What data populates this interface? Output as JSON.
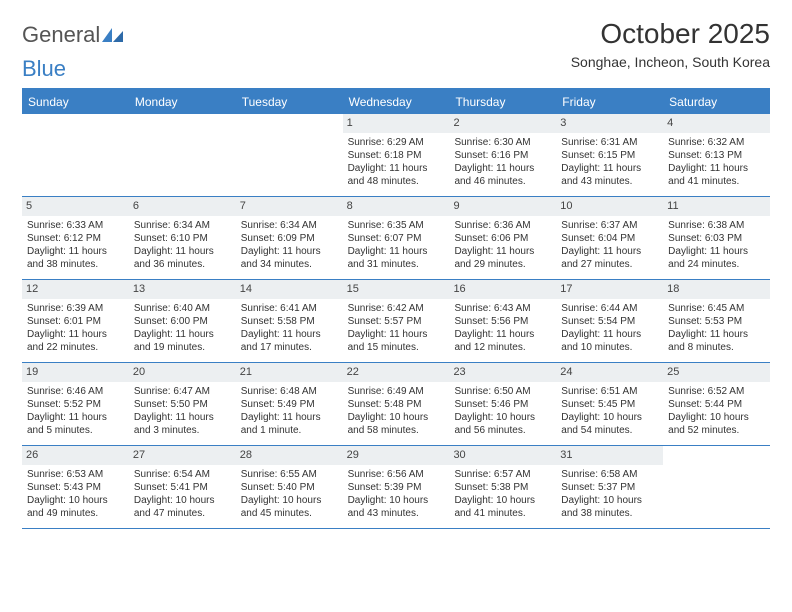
{
  "logo": {
    "general": "General",
    "blue": "Blue"
  },
  "header": {
    "title": "October 2025",
    "location": "Songhae, Incheon, South Korea"
  },
  "colors": {
    "primary": "#3a7fc4",
    "daynum_bg": "#eceff1",
    "text": "#333333",
    "logo_gray": "#555555",
    "white": "#ffffff"
  },
  "dayNames": [
    "Sunday",
    "Monday",
    "Tuesday",
    "Wednesday",
    "Thursday",
    "Friday",
    "Saturday"
  ],
  "weeks": [
    [
      null,
      null,
      null,
      {
        "n": "1",
        "sr": "6:29 AM",
        "ss": "6:18 PM",
        "dl": "11 hours and 48 minutes."
      },
      {
        "n": "2",
        "sr": "6:30 AM",
        "ss": "6:16 PM",
        "dl": "11 hours and 46 minutes."
      },
      {
        "n": "3",
        "sr": "6:31 AM",
        "ss": "6:15 PM",
        "dl": "11 hours and 43 minutes."
      },
      {
        "n": "4",
        "sr": "6:32 AM",
        "ss": "6:13 PM",
        "dl": "11 hours and 41 minutes."
      }
    ],
    [
      {
        "n": "5",
        "sr": "6:33 AM",
        "ss": "6:12 PM",
        "dl": "11 hours and 38 minutes."
      },
      {
        "n": "6",
        "sr": "6:34 AM",
        "ss": "6:10 PM",
        "dl": "11 hours and 36 minutes."
      },
      {
        "n": "7",
        "sr": "6:34 AM",
        "ss": "6:09 PM",
        "dl": "11 hours and 34 minutes."
      },
      {
        "n": "8",
        "sr": "6:35 AM",
        "ss": "6:07 PM",
        "dl": "11 hours and 31 minutes."
      },
      {
        "n": "9",
        "sr": "6:36 AM",
        "ss": "6:06 PM",
        "dl": "11 hours and 29 minutes."
      },
      {
        "n": "10",
        "sr": "6:37 AM",
        "ss": "6:04 PM",
        "dl": "11 hours and 27 minutes."
      },
      {
        "n": "11",
        "sr": "6:38 AM",
        "ss": "6:03 PM",
        "dl": "11 hours and 24 minutes."
      }
    ],
    [
      {
        "n": "12",
        "sr": "6:39 AM",
        "ss": "6:01 PM",
        "dl": "11 hours and 22 minutes."
      },
      {
        "n": "13",
        "sr": "6:40 AM",
        "ss": "6:00 PM",
        "dl": "11 hours and 19 minutes."
      },
      {
        "n": "14",
        "sr": "6:41 AM",
        "ss": "5:58 PM",
        "dl": "11 hours and 17 minutes."
      },
      {
        "n": "15",
        "sr": "6:42 AM",
        "ss": "5:57 PM",
        "dl": "11 hours and 15 minutes."
      },
      {
        "n": "16",
        "sr": "6:43 AM",
        "ss": "5:56 PM",
        "dl": "11 hours and 12 minutes."
      },
      {
        "n": "17",
        "sr": "6:44 AM",
        "ss": "5:54 PM",
        "dl": "11 hours and 10 minutes."
      },
      {
        "n": "18",
        "sr": "6:45 AM",
        "ss": "5:53 PM",
        "dl": "11 hours and 8 minutes."
      }
    ],
    [
      {
        "n": "19",
        "sr": "6:46 AM",
        "ss": "5:52 PM",
        "dl": "11 hours and 5 minutes."
      },
      {
        "n": "20",
        "sr": "6:47 AM",
        "ss": "5:50 PM",
        "dl": "11 hours and 3 minutes."
      },
      {
        "n": "21",
        "sr": "6:48 AM",
        "ss": "5:49 PM",
        "dl": "11 hours and 1 minute."
      },
      {
        "n": "22",
        "sr": "6:49 AM",
        "ss": "5:48 PM",
        "dl": "10 hours and 58 minutes."
      },
      {
        "n": "23",
        "sr": "6:50 AM",
        "ss": "5:46 PM",
        "dl": "10 hours and 56 minutes."
      },
      {
        "n": "24",
        "sr": "6:51 AM",
        "ss": "5:45 PM",
        "dl": "10 hours and 54 minutes."
      },
      {
        "n": "25",
        "sr": "6:52 AM",
        "ss": "5:44 PM",
        "dl": "10 hours and 52 minutes."
      }
    ],
    [
      {
        "n": "26",
        "sr": "6:53 AM",
        "ss": "5:43 PM",
        "dl": "10 hours and 49 minutes."
      },
      {
        "n": "27",
        "sr": "6:54 AM",
        "ss": "5:41 PM",
        "dl": "10 hours and 47 minutes."
      },
      {
        "n": "28",
        "sr": "6:55 AM",
        "ss": "5:40 PM",
        "dl": "10 hours and 45 minutes."
      },
      {
        "n": "29",
        "sr": "6:56 AM",
        "ss": "5:39 PM",
        "dl": "10 hours and 43 minutes."
      },
      {
        "n": "30",
        "sr": "6:57 AM",
        "ss": "5:38 PM",
        "dl": "10 hours and 41 minutes."
      },
      {
        "n": "31",
        "sr": "6:58 AM",
        "ss": "5:37 PM",
        "dl": "10 hours and 38 minutes."
      },
      null
    ]
  ],
  "labels": {
    "sunrise": "Sunrise: ",
    "sunset": "Sunset: ",
    "daylight": "Daylight: "
  }
}
